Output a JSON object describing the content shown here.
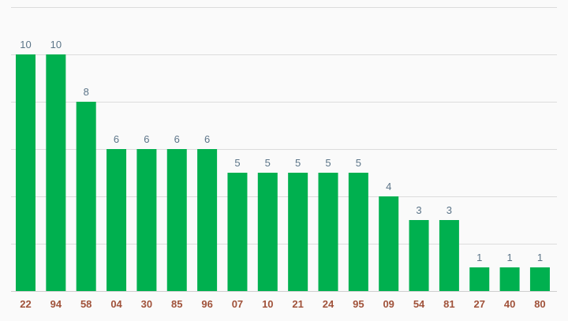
{
  "chart_data": {
    "type": "bar",
    "title": "",
    "xlabel": "",
    "ylabel": "",
    "categories": [
      "22",
      "94",
      "58",
      "04",
      "30",
      "85",
      "96",
      "07",
      "10",
      "21",
      "24",
      "95",
      "09",
      "54",
      "81",
      "27",
      "40",
      "80"
    ],
    "values": [
      10,
      10,
      8,
      6,
      6,
      6,
      6,
      5,
      5,
      5,
      5,
      5,
      4,
      3,
      3,
      1,
      1,
      1
    ],
    "ylim": [
      0,
      12
    ],
    "y_gridline_step": 2,
    "grid": true,
    "legend": "none",
    "show_value_labels": true,
    "colors": {
      "bar": "#00b04f",
      "value_label": "#5b7488",
      "tick_label": "#a0523a",
      "grid": "#dcdcdc",
      "background": "#fafafa"
    }
  }
}
